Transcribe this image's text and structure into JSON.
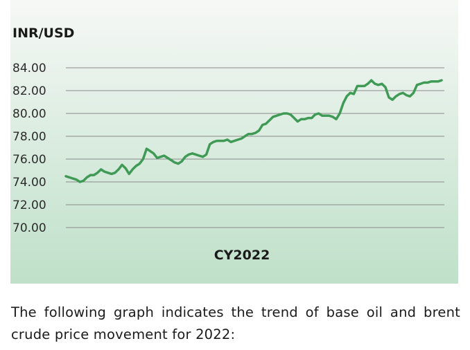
{
  "chart_data": {
    "type": "line",
    "title": "INR/USD",
    "xlabel": "CY2022",
    "ylabel": "",
    "ylim": [
      70,
      84
    ],
    "yticks": [
      "84.00",
      "82.00",
      "80.00",
      "78.00",
      "76.00",
      "74.00",
      "72.00",
      "70.00"
    ],
    "grid": true,
    "legend": "none",
    "series": [
      {
        "values": [
          74.5,
          74.4,
          74.3,
          74.2,
          74.0,
          74.1,
          74.4,
          74.6,
          74.6,
          74.8,
          75.1,
          74.9,
          74.8,
          74.7,
          74.8,
          75.1,
          75.5,
          75.2,
          74.7,
          75.1,
          75.4,
          75.6,
          76.0,
          76.9,
          76.7,
          76.5,
          76.1,
          76.2,
          76.3,
          76.1,
          75.9,
          75.7,
          75.6,
          75.8,
          76.2,
          76.4,
          76.5,
          76.4,
          76.3,
          76.2,
          76.4,
          77.3,
          77.5,
          77.6,
          77.6,
          77.6,
          77.7,
          77.5,
          77.6,
          77.7,
          77.8,
          78.0,
          78.2,
          78.2,
          78.3,
          78.5,
          79.0,
          79.1,
          79.4,
          79.7,
          79.8,
          79.9,
          80.0,
          80.0,
          79.9,
          79.6,
          79.3,
          79.5,
          79.5,
          79.6,
          79.6,
          79.9,
          80.0,
          79.8,
          79.8,
          79.8,
          79.7,
          79.5,
          80.0,
          80.9,
          81.5,
          81.8,
          81.7,
          82.4,
          82.4,
          82.4,
          82.6,
          82.9,
          82.6,
          82.5,
          82.6,
          82.3,
          81.4,
          81.2,
          81.5,
          81.7,
          81.8,
          81.6,
          81.5,
          81.8,
          82.5,
          82.6,
          82.7,
          82.7,
          82.8,
          82.8,
          82.8,
          82.9
        ]
      }
    ]
  },
  "caption": {
    "text": "The following graph indicates the trend of base oil and brent crude price movement for 2022:"
  },
  "colors": {
    "line": "#3f9a55",
    "panel_top": "#f6f8f6",
    "panel_bottom": "#bfe0c9",
    "grid": "#8a8a8a"
  }
}
